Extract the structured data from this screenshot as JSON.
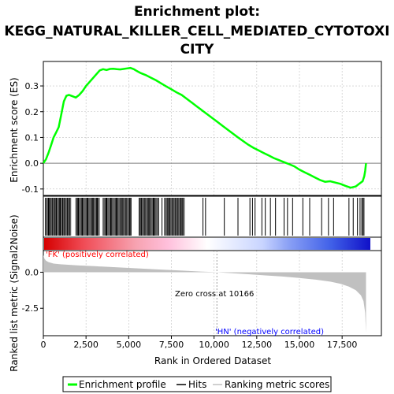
{
  "chart_data": {
    "type": "line",
    "title_lines": [
      "Enrichment plot:",
      "KEGG_NATURAL_KILLER_CELL_MEDIATED_CYTOTOXI",
      "CITY"
    ],
    "xlabel": "Rank in Ordered Dataset",
    "ylabel_top": "Enrichment score (ES)",
    "ylabel_bottom": "Ranked list metric (Signal2Noise)",
    "xlim": [
      0,
      19800
    ],
    "es_ylim": [
      -0.125,
      0.395
    ],
    "metric_ylim": [
      -4.4,
      1.5
    ],
    "x_ticks": [
      0,
      2500,
      5000,
      7500,
      10000,
      12500,
      15000,
      17500
    ],
    "x_tick_labels": [
      "0",
      "2,500",
      "5,000",
      "7,500",
      "10,000",
      "12,500",
      "15,000",
      "17,500"
    ],
    "es_ticks": [
      -0.1,
      0.0,
      0.1,
      0.2,
      0.3
    ],
    "es_tick_labels": [
      "-0.1",
      "0.0",
      "0.1",
      "0.2",
      "0.3"
    ],
    "metric_ticks": [
      0.0,
      -2.5
    ],
    "metric_tick_labels": [
      "0.0",
      "-2.5"
    ],
    "es_curve": {
      "x": [
        0,
        150,
        300,
        450,
        600,
        750,
        900,
        1050,
        1200,
        1350,
        1500,
        1700,
        1900,
        2100,
        2300,
        2500,
        2700,
        2900,
        3100,
        3300,
        3500,
        3700,
        3900,
        4100,
        4300,
        4500,
        4700,
        4900,
        5100,
        5300,
        5500,
        5700,
        6000,
        6300,
        6600,
        6900,
        7200,
        7500,
        7800,
        8100,
        8400,
        8700,
        9000,
        9300,
        9600,
        9900,
        10200,
        10500,
        10800,
        11100,
        11400,
        11700,
        12000,
        12300,
        12600,
        12900,
        13200,
        13500,
        13800,
        14100,
        14400,
        14700,
        15000,
        15300,
        15600,
        15900,
        16200,
        16500,
        16800,
        17100,
        17400,
        17700,
        18000,
        18300,
        18500,
        18700,
        18800,
        18850,
        18900
      ],
      "y": [
        0.0,
        0.015,
        0.04,
        0.07,
        0.1,
        0.12,
        0.14,
        0.19,
        0.24,
        0.262,
        0.265,
        0.26,
        0.255,
        0.265,
        0.28,
        0.3,
        0.315,
        0.33,
        0.345,
        0.36,
        0.365,
        0.362,
        0.366,
        0.367,
        0.365,
        0.364,
        0.366,
        0.368,
        0.37,
        0.365,
        0.357,
        0.35,
        0.342,
        0.332,
        0.322,
        0.31,
        0.298,
        0.287,
        0.275,
        0.265,
        0.25,
        0.235,
        0.22,
        0.205,
        0.19,
        0.175,
        0.16,
        0.145,
        0.13,
        0.115,
        0.1,
        0.086,
        0.072,
        0.06,
        0.05,
        0.04,
        0.03,
        0.02,
        0.012,
        0.004,
        -0.004,
        -0.012,
        -0.025,
        -0.035,
        -0.045,
        -0.055,
        -0.065,
        -0.072,
        -0.07,
        -0.075,
        -0.08,
        -0.088,
        -0.095,
        -0.09,
        -0.08,
        -0.07,
        -0.05,
        -0.03,
        0.0
      ]
    },
    "hits_dense_ranges": [
      [
        120,
        1650
      ],
      [
        1900,
        3300
      ],
      [
        3500,
        5200
      ],
      [
        5600,
        6800
      ],
      [
        7100,
        8300
      ]
    ],
    "hits_single": [
      300,
      520,
      760,
      980,
      1150,
      1420,
      2050,
      2280,
      2600,
      2900,
      3150,
      3700,
      3950,
      4300,
      4650,
      5050,
      5750,
      6150,
      6450,
      6950,
      7400,
      7750,
      8050,
      9350,
      9500,
      10600,
      11400,
      12100,
      12250,
      12400,
      12800,
      13000,
      13300,
      13600,
      14100,
      14300,
      14600,
      15200,
      15600,
      16300,
      16700,
      17000,
      17900,
      18150,
      18400,
      18550,
      18650,
      18720,
      18780
    ],
    "metric_curve": {
      "x": [
        0,
        60,
        150,
        300,
        600,
        1000,
        2000,
        3000,
        4000,
        5000,
        6000,
        7000,
        8000,
        9000,
        10000,
        10166,
        11000,
        12000,
        13000,
        14000,
        15000,
        16000,
        16800,
        17400,
        17900,
        18300,
        18600,
        18750,
        18850,
        18900
      ],
      "y": [
        1.2,
        0.95,
        0.8,
        0.7,
        0.6,
        0.55,
        0.48,
        0.42,
        0.36,
        0.3,
        0.24,
        0.18,
        0.12,
        0.06,
        0.01,
        0.0,
        -0.06,
        -0.14,
        -0.22,
        -0.3,
        -0.4,
        -0.52,
        -0.65,
        -0.8,
        -1.0,
        -1.25,
        -1.6,
        -2.0,
        -2.8,
        -4.2
      ]
    },
    "annotations": {
      "pos_label": "'FK' (positively correlated)",
      "neg_label": "'HN' (negatively correlated)",
      "zero_cross": "Zero cross at 10166",
      "zero_cross_x": 10166
    },
    "legend": [
      "Enrichment profile",
      "Hits",
      "Ranking metric scores"
    ],
    "colors": {
      "es_line": "#00ff00",
      "hits": "#000000",
      "metric_fill": "#c0c0c0",
      "pos_label": "#ff0000",
      "neg_label": "#0000ff",
      "grid": "#c0c0c0",
      "zero_line": "#808080"
    }
  }
}
